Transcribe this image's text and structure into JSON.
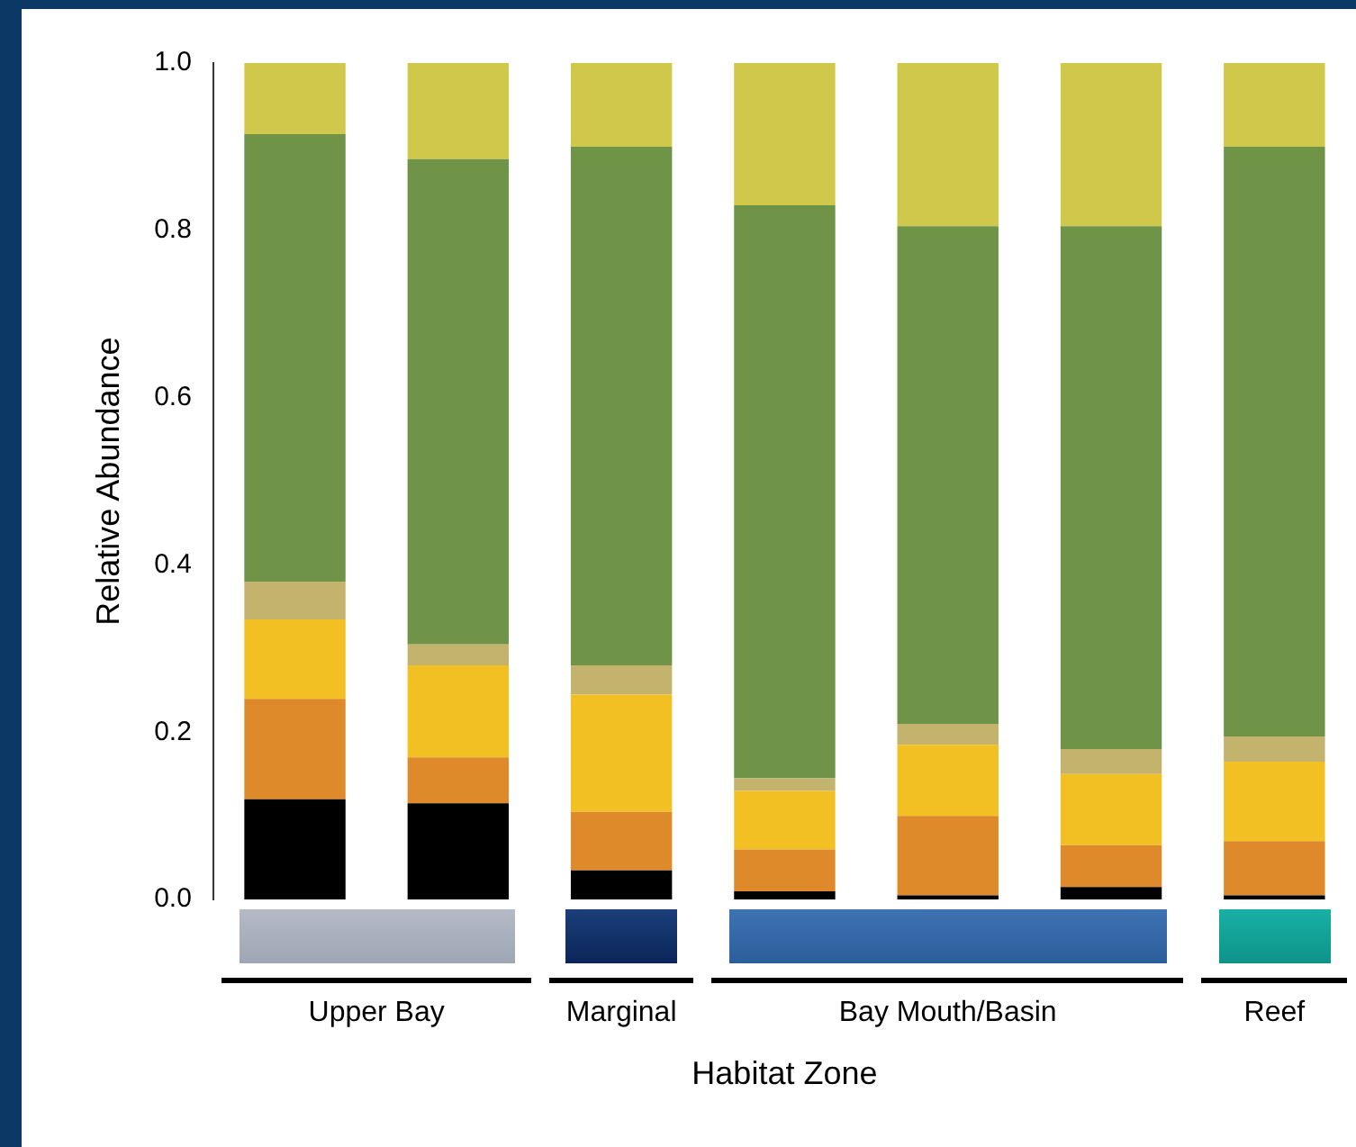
{
  "chart_data": {
    "type": "bar",
    "stacked": true,
    "ylabel": "Relative Abundance",
    "xlabel": "Habitat Zone",
    "categories": [
      null,
      null,
      null,
      null,
      null,
      null,
      null
    ],
    "series": [
      {
        "color": "#000000",
        "values": [
          0.12,
          0.115,
          0.035,
          0.01,
          0.005,
          0.015,
          0.005
        ]
      },
      {
        "color": "#de8a2a",
        "values": [
          0.12,
          0.055,
          0.07,
          0.05,
          0.095,
          0.05,
          0.065
        ]
      },
      {
        "color": "#f2c022",
        "values": [
          0.095,
          0.11,
          0.14,
          0.07,
          0.085,
          0.085,
          0.095
        ]
      },
      {
        "color": "#c3b36c",
        "values": [
          0.045,
          0.025,
          0.035,
          0.015,
          0.025,
          0.03,
          0.03
        ]
      },
      {
        "color": "#6f9447",
        "values": [
          0.535,
          0.58,
          0.62,
          0.685,
          0.595,
          0.625,
          0.705
        ]
      },
      {
        "color": "#cfc84a",
        "values": [
          0.085,
          0.115,
          0.1,
          0.17,
          0.195,
          0.195,
          0.1
        ]
      }
    ],
    "ylim": [
      0,
      1.0
    ],
    "yticks": [
      {
        "value": 0,
        "label": "0.0"
      },
      {
        "value": 0.2,
        "label": "0.2"
      },
      {
        "value": 0.4,
        "label": "0.4"
      },
      {
        "value": 0.6,
        "label": "0.6"
      },
      {
        "value": 0.8,
        "label": "0.8"
      },
      {
        "value": 1.0,
        "label": "1.0"
      }
    ],
    "grid": false,
    "legend": false,
    "annotations": [
      "Upper Bay",
      "Marginal",
      "Bay Mouth/Basin",
      "Reef"
    ]
  }
}
